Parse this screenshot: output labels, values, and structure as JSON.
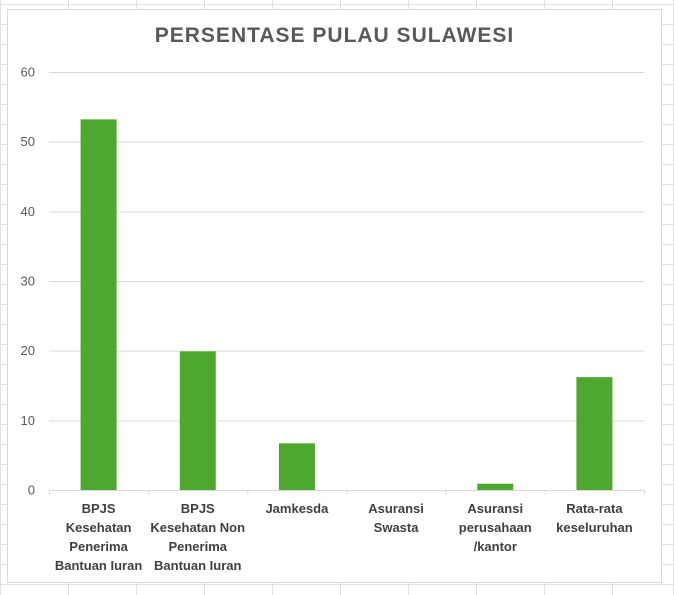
{
  "colors": {
    "bar": "#4ea72e",
    "gridline": "#d9d9d9",
    "axis_text": "#595959",
    "title": "#595959"
  },
  "chart_data": {
    "type": "bar",
    "title": "PERSENTASE PULAU SULAWESI",
    "xlabel": "",
    "ylabel": "",
    "ylim": [
      0,
      60
    ],
    "yticks": [
      0,
      10,
      20,
      30,
      40,
      50,
      60
    ],
    "grid": true,
    "legend": "none",
    "categories": [
      "BPJS Kesehatan Penerima Bantuan Iuran",
      "BPJS Kesehatan Non Penerima Bantuan Iuran",
      "Jamkesda",
      "Asuransi Swasta",
      "Asuransi perusahaan /kantor",
      "Rata-rata keseluruhan"
    ],
    "category_label_lines": [
      [
        "BPJS",
        "Kesehatan",
        "Penerima",
        "Bantuan Iuran"
      ],
      [
        "BPJS",
        "Kesehatan Non",
        "Penerima",
        "Bantuan Iuran"
      ],
      [
        "Jamkesda"
      ],
      [
        "Asuransi",
        "Swasta"
      ],
      [
        "Asuransi",
        "perusahaan",
        "/kantor"
      ],
      [
        "Rata-rata",
        "keseluruhan"
      ]
    ],
    "values": [
      53.2,
      19.9,
      6.7,
      0,
      0.9,
      16.2
    ]
  }
}
